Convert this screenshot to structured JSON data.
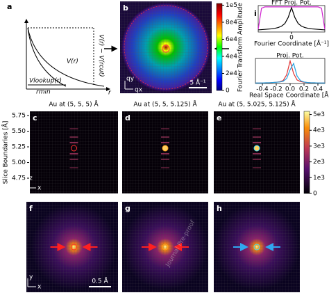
{
  "panel_labels": [
    "a",
    "b",
    "i",
    "c",
    "d",
    "e",
    "f",
    "g",
    "h"
  ],
  "diagram": {
    "v_r": "V(r)",
    "v_lookup": "Vlookup(r)",
    "r_min": "rmin",
    "r": "r",
    "v_diff": "V(r) − V(rcut)"
  },
  "image_b": {
    "scale_bar": "5 Å⁻¹",
    "axis_x": "qx",
    "axis_y": "qy"
  },
  "colorbar_b": {
    "label": "Fourier Transform Amplitude",
    "lim": [
      0,
      102000
    ],
    "ticks": [
      {
        "value": 100000,
        "label": "1e5"
      },
      {
        "value": 80000,
        "label": "8e4"
      },
      {
        "value": 60000,
        "label": "6e4"
      },
      {
        "value": 40000,
        "label": "4e4"
      },
      {
        "value": 20000,
        "label": "2e4"
      },
      0
    ]
  },
  "chart_data": [
    {
      "type": "line",
      "title": "FFT Proj. Pot.",
      "x_label": "Fourier Coordinate [Å⁻¹]",
      "xlim": [
        -1,
        1
      ],
      "xticks": [
        0
      ],
      "ylim": [
        0,
        1
      ],
      "x": [
        -1,
        -0.9,
        -0.8,
        -0.7,
        -0.6,
        -0.5,
        -0.4,
        -0.3,
        -0.2,
        -0.1,
        0,
        0.1,
        0.2,
        0.3,
        0.4,
        0.5,
        0.6,
        0.7,
        0.8,
        0.9,
        1
      ],
      "series": [
        {
          "color": "#d020d0",
          "values": [
            0.1,
            0.9,
            0.95,
            0.95,
            0.95,
            0.95,
            0.95,
            0.95,
            0.95,
            0.95,
            0.95,
            0.95,
            0.95,
            0.95,
            0.95,
            0.95,
            0.95,
            0.95,
            0.95,
            0.9,
            0.1
          ]
        },
        {
          "color": "#000000",
          "values": [
            0.08,
            0.09,
            0.1,
            0.11,
            0.12,
            0.14,
            0.17,
            0.22,
            0.32,
            0.55,
            0.92,
            0.55,
            0.32,
            0.22,
            0.17,
            0.14,
            0.12,
            0.11,
            0.1,
            0.09,
            0.08
          ]
        }
      ]
    },
    {
      "type": "line",
      "title": "Proj. Pot.",
      "x_label": "Real Space Coordinate [Å]",
      "xlim": [
        -0.5,
        0.5
      ],
      "xticks": [
        -0.4,
        -0.2,
        {
          "value": 0,
          "label": "0.0"
        },
        0.2,
        0.4
      ],
      "ylim": [
        0,
        1
      ],
      "x": [
        -0.5,
        -0.45,
        -0.4,
        -0.35,
        -0.3,
        -0.25,
        -0.2,
        -0.15,
        -0.1,
        -0.05,
        0,
        0.05,
        0.1,
        0.15,
        0.2,
        0.25,
        0.3,
        0.35,
        0.4,
        0.45,
        0.5
      ],
      "series": [
        {
          "color": "#e03030",
          "values": [
            0.02,
            0.02,
            0.02,
            0.03,
            0.03,
            0.04,
            0.05,
            0.07,
            0.12,
            0.35,
            0.9,
            0.4,
            0.14,
            0.08,
            0.05,
            0.04,
            0.03,
            0.03,
            0.02,
            0.02,
            0.02
          ]
        },
        {
          "color": "#20a0e0",
          "values": [
            0.02,
            0.02,
            0.02,
            0.03,
            0.03,
            0.04,
            0.05,
            0.06,
            0.09,
            0.2,
            0.55,
            0.8,
            0.3,
            0.11,
            0.06,
            0.04,
            0.03,
            0.03,
            0.02,
            0.02,
            0.02
          ]
        }
      ]
    }
  ],
  "row_titles": [
    "Au at (5, 5, 5) Å",
    "Au at (5, 5, 5.125) Å",
    "Au at (5, 5.025, 5.125) Å"
  ],
  "slice_axis": {
    "label": "Slice Boundaries [Å]",
    "lim": [
      4.506,
      5.817
    ],
    "ticks": [
      5.75,
      {
        "value": 5.5,
        "label": "5.50"
      },
      5.25,
      {
        "value": 5,
        "label": "5.00"
      },
      4.75
    ]
  },
  "colorbar_e": {
    "lim": [
      0,
      5200
    ],
    "ticks": [
      {
        "value": 5000,
        "label": "5e3"
      },
      {
        "value": 4000,
        "label": "4e3"
      },
      {
        "value": 3000,
        "label": "3e3"
      },
      {
        "value": 2000,
        "label": "2e3"
      },
      {
        "value": 1000,
        "label": "1e3"
      },
      0
    ]
  },
  "axes_c": {
    "vertical": "z",
    "horizontal": "x"
  },
  "axes_f": {
    "vertical": "y",
    "horizontal": "x"
  },
  "scale_bar_f": "0.5 Å",
  "watermark": "Journal Pre-proof"
}
